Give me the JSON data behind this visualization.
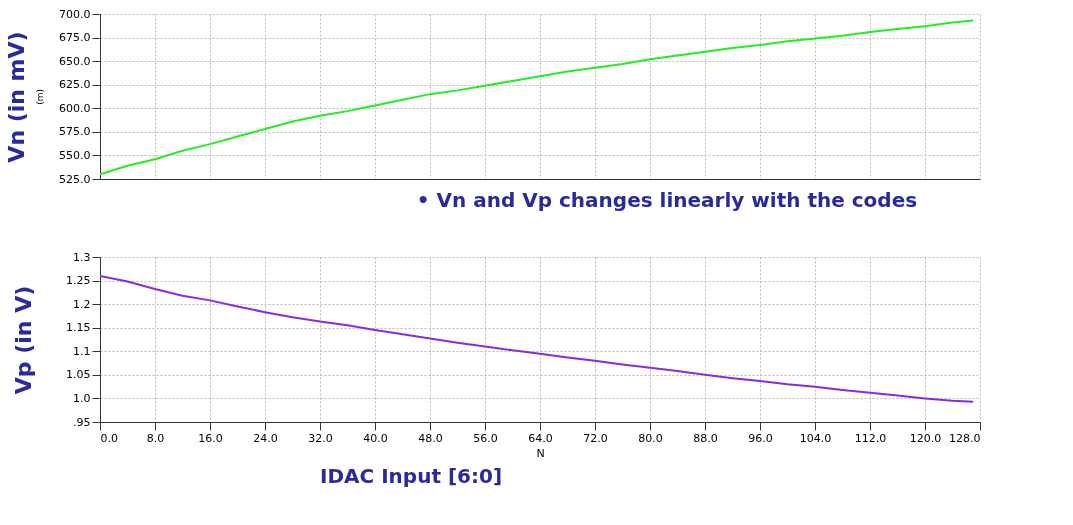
{
  "chart_data": [
    {
      "type": "line",
      "ylabel": "Vn (in mV)",
      "annotations": [
        "(m)",
        "• Vn and Vp changes linearly with the codes"
      ],
      "x": [
        0,
        4,
        8,
        12,
        16,
        20,
        24,
        28,
        32,
        36,
        40,
        44,
        48,
        52,
        56,
        60,
        64,
        68,
        72,
        76,
        80,
        84,
        88,
        92,
        96,
        100,
        104,
        108,
        112,
        116,
        120,
        124,
        127
      ],
      "series": [
        {
          "color": "#22ee22",
          "values": [
            530,
            539,
            546,
            555,
            562,
            570,
            578,
            586,
            592,
            597,
            603,
            609,
            615,
            619,
            624,
            629,
            634,
            639,
            643,
            647,
            652,
            656,
            660,
            664,
            667,
            671,
            674,
            677,
            681,
            684,
            687,
            691,
            693
          ]
        }
      ],
      "xlim": [
        0,
        128
      ],
      "xticks": [
        0,
        8,
        16,
        24,
        32,
        40,
        48,
        56,
        64,
        72,
        80,
        88,
        96,
        104,
        112,
        120,
        128
      ],
      "ylim": [
        525,
        700
      ],
      "yticks": [
        {
          "value": 525,
          "label": "525.0"
        },
        {
          "value": 550,
          "label": "550.0"
        },
        {
          "value": 575,
          "label": "575.0"
        },
        {
          "value": 600,
          "label": "600.0"
        },
        {
          "value": 625,
          "label": "625.0"
        },
        {
          "value": 650,
          "label": "650.0"
        },
        {
          "value": 675,
          "label": "675.0"
        },
        {
          "value": 700,
          "label": "700.0"
        }
      ],
      "grid": true,
      "tick_labels": "y",
      "line_style": "solid"
    },
    {
      "type": "line",
      "ylabel": "Vp (in V)",
      "xlabel": "N",
      "annotations": [
        "IDAC Input [6:0]"
      ],
      "x": [
        0,
        4,
        8,
        12,
        16,
        20,
        24,
        28,
        32,
        36,
        40,
        44,
        48,
        52,
        56,
        60,
        64,
        68,
        72,
        76,
        80,
        84,
        88,
        92,
        96,
        100,
        104,
        108,
        112,
        116,
        120,
        124,
        127
      ],
      "series": [
        {
          "color": "#8a2be2",
          "values": [
            1.26,
            1.248,
            1.232,
            1.218,
            1.208,
            1.195,
            1.183,
            1.172,
            1.163,
            1.155,
            1.145,
            1.136,
            1.127,
            1.118,
            1.11,
            1.102,
            1.095,
            1.087,
            1.08,
            1.072,
            1.065,
            1.058,
            1.05,
            1.043,
            1.037,
            1.03,
            1.025,
            1.018,
            1.012,
            1.006,
            1.0,
            0.995,
            0.993
          ]
        }
      ],
      "xlim": [
        0,
        128
      ],
      "xticks": [
        {
          "value": 0,
          "label": "0.0"
        },
        {
          "value": 8,
          "label": "8.0"
        },
        {
          "value": 16,
          "label": "16.0"
        },
        {
          "value": 24,
          "label": "24.0"
        },
        {
          "value": 32,
          "label": "32.0"
        },
        {
          "value": 40,
          "label": "40.0"
        },
        {
          "value": 48,
          "label": "48.0"
        },
        {
          "value": 56,
          "label": "56.0"
        },
        {
          "value": 64,
          "label": "64.0"
        },
        {
          "value": 72,
          "label": "72.0"
        },
        {
          "value": 80,
          "label": "80.0"
        },
        {
          "value": 88,
          "label": "88.0"
        },
        {
          "value": 96,
          "label": "96.0"
        },
        {
          "value": 104,
          "label": "104.0"
        },
        {
          "value": 112,
          "label": "112.0"
        },
        {
          "value": 120,
          "label": "120.0"
        },
        {
          "value": 128,
          "label": "128.0"
        }
      ],
      "ylim": [
        0.95,
        1.3
      ],
      "yticks": [
        {
          "value": 0.95,
          "label": ".95"
        },
        {
          "value": 1.0,
          "label": "1.0"
        },
        1.05,
        1.1,
        1.15,
        1.2,
        1.25,
        1.3
      ],
      "grid": true,
      "line_style": "solid"
    }
  ]
}
